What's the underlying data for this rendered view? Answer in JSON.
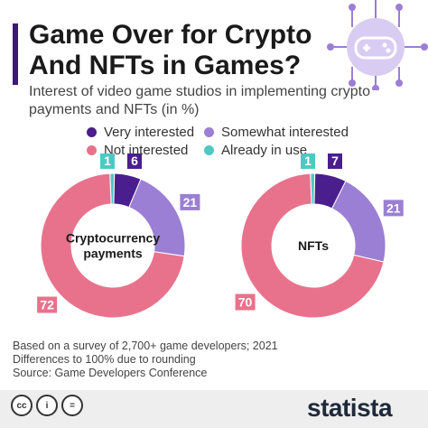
{
  "header": {
    "title": "Game Over for Crypto And NFTs in Games?",
    "subtitle": "Interest of video game studios in implementing crypto payments and NFTs (in %)"
  },
  "legend": [
    {
      "label": "Very interested",
      "color": "#4a1e8c"
    },
    {
      "label": "Somewhat interested",
      "color": "#9b7fd4"
    },
    {
      "label": "Not interested",
      "color": "#e8728c"
    },
    {
      "label": "Already in use",
      "color": "#4dc9c4"
    }
  ],
  "chart_data": [
    {
      "type": "pie",
      "title": "Cryptocurrency payments",
      "categories": [
        "Already in use",
        "Very interested",
        "Somewhat interested",
        "Not interested"
      ],
      "values": [
        1,
        6,
        21,
        72
      ],
      "colors": [
        "#4dc9c4",
        "#4a1e8c",
        "#9b7fd4",
        "#e8728c"
      ]
    },
    {
      "type": "pie",
      "title": "NFTs",
      "categories": [
        "Already in use",
        "Very interested",
        "Somewhat interested",
        "Not interested"
      ],
      "values": [
        1,
        7,
        21,
        70
      ],
      "colors": [
        "#4dc9c4",
        "#4a1e8c",
        "#9b7fd4",
        "#e8728c"
      ]
    }
  ],
  "footer": {
    "line1": "Based on a survey of 2,700+ game developers; 2021",
    "line2": "Differences to 100% due to rounding",
    "line3": "Source: Game Developers Conference"
  },
  "brand": "statista",
  "icons": {
    "cc": "cc",
    "by": "i",
    "nd": "="
  }
}
